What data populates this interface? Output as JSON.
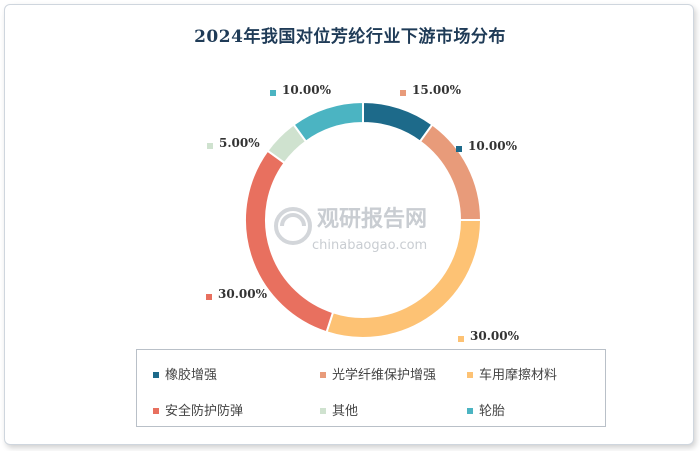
{
  "chart_data": {
    "type": "pie",
    "title": "2024年我国对位芳纶行业下游市场分布",
    "donut": true,
    "categories": [
      "橡胶增强",
      "光学纤维保护增强",
      "车用摩擦材料",
      "安全防护防弹",
      "其他",
      "轮胎"
    ],
    "values": [
      10.0,
      15.0,
      30.0,
      30.0,
      5.0,
      10.0
    ],
    "value_labels": [
      "10.00%",
      "15.00%",
      "30.00%",
      "30.00%",
      "5.00%",
      "10.00%"
    ],
    "colors": [
      "#1d6a8a",
      "#e89b7a",
      "#fdc274",
      "#e8705f",
      "#cfe2cf",
      "#4bb4c2"
    ],
    "legend_position": "bottom"
  },
  "watermark": {
    "cn": "观研报告网",
    "en": "chinabaogao.com"
  }
}
